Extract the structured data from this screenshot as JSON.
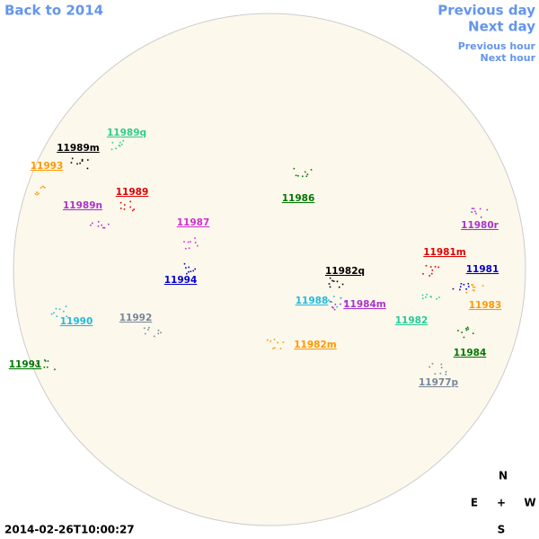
{
  "nav": {
    "back": "Back to 2014",
    "previous_day": "Previous day",
    "next_day": "Next day",
    "previous_hour": "Previous hour",
    "next_hour": "Next hour"
  },
  "regions": [
    {
      "label": "11989q",
      "color": "#33cc88"
    },
    {
      "label": "11989m",
      "color": "#000000"
    },
    {
      "label": "11993",
      "color": "#ff9900"
    },
    {
      "label": "11989n",
      "color": "#aa33cc"
    },
    {
      "label": "11989",
      "color": "#dd0000"
    },
    {
      "label": "11987",
      "color": "#cc33cc"
    },
    {
      "label": "11986",
      "color": "#007700"
    },
    {
      "label": "11980r",
      "color": "#aa33cc"
    },
    {
      "label": "11981m",
      "color": "#dd0000"
    },
    {
      "label": "11982q",
      "color": "#000000"
    },
    {
      "label": "11981",
      "color": "#0000cc"
    },
    {
      "label": "11994",
      "color": "#0000cc"
    },
    {
      "label": "11988",
      "color": "#22bbdd"
    },
    {
      "label": "11984m",
      "color": "#aa33cc"
    },
    {
      "label": "11983",
      "color": "#ff9900"
    },
    {
      "label": "11990",
      "color": "#22bbdd"
    },
    {
      "label": "11992",
      "color": "#778899"
    },
    {
      "label": "11982",
      "color": "#22cc99"
    },
    {
      "label": "11982m",
      "color": "#ff9900"
    },
    {
      "label": "11984",
      "color": "#007700"
    },
    {
      "label": "11991",
      "color": "#007700"
    },
    {
      "label": "11977p",
      "color": "#778899"
    }
  ],
  "compass": {
    "north": "N",
    "east": "E",
    "center": "+",
    "west": "W",
    "south": "S"
  },
  "timestamp": "2014-02-26T10:00:27"
}
